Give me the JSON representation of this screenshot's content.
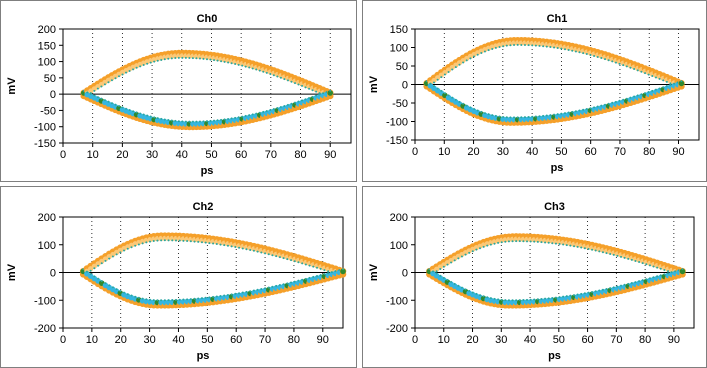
{
  "chart_data": [
    {
      "type": "scatter",
      "title": "Ch0",
      "xlabel": "ps",
      "ylabel": "mV",
      "xlim": [
        0,
        97
      ],
      "ylim": [
        -150,
        200
      ],
      "xticks": [
        "0",
        "10",
        "20",
        "30",
        "40",
        "50",
        "60",
        "70",
        "80",
        "90"
      ],
      "yticks": [
        "200",
        "150",
        "100",
        "50",
        "0",
        "-50",
        "-100",
        "-150"
      ],
      "grid": true,
      "eye": {
        "x_start": 7,
        "x_end": 90,
        "peak_x": 40,
        "peak_y": 122,
        "trough_x": 43,
        "trough_y": -95
      }
    },
    {
      "type": "scatter",
      "title": "Ch1",
      "xlabel": "ps",
      "ylabel": "mV",
      "xlim": [
        0,
        97
      ],
      "ylim": [
        -150,
        150
      ],
      "xticks": [
        "0",
        "10",
        "20",
        "30",
        "40",
        "50",
        "60",
        "70",
        "80",
        "90"
      ],
      "yticks": [
        "150",
        "100",
        "50",
        "0",
        "-50",
        "-100",
        "-150"
      ],
      "grid": true,
      "eye": {
        "x_start": 4,
        "x_end": 91,
        "peak_x": 35,
        "peak_y": 116,
        "trough_x": 33,
        "trough_y": -98
      }
    },
    {
      "type": "scatter",
      "title": "Ch2",
      "xlabel": "ps",
      "ylabel": "mV",
      "xlim": [
        0,
        97
      ],
      "ylim": [
        -200,
        200
      ],
      "xticks": [
        "0",
        "10",
        "20",
        "30",
        "40",
        "50",
        "60",
        "70",
        "80",
        "90"
      ],
      "yticks": [
        "200",
        "100",
        "0",
        "-100",
        "-200"
      ],
      "grid": true,
      "eye": {
        "x_start": 7,
        "x_end": 97,
        "peak_x": 35,
        "peak_y": 128,
        "trough_x": 33,
        "trough_y": -112
      }
    },
    {
      "type": "scatter",
      "title": "Ch3",
      "xlabel": "ps",
      "ylabel": "mV",
      "xlim": [
        0,
        97
      ],
      "ylim": [
        -200,
        200
      ],
      "xticks": [
        "0",
        "10",
        "20",
        "30",
        "40",
        "50",
        "60",
        "70",
        "80",
        "90"
      ],
      "yticks": [
        "200",
        "100",
        "0",
        "-100",
        "-200"
      ],
      "grid": true,
      "eye": {
        "x_start": 5,
        "x_end": 93,
        "peak_x": 35,
        "peak_y": 125,
        "trough_x": 33,
        "trough_y": -112
      }
    }
  ],
  "colors": {
    "upper_outer": "#f5a02a",
    "upper_inner": "#fbc877",
    "lower_inner": "#35b6e0",
    "lower_green": "#2f8a2f",
    "lower_outer": "#f5a02a",
    "edge": "#2aa7a0"
  }
}
